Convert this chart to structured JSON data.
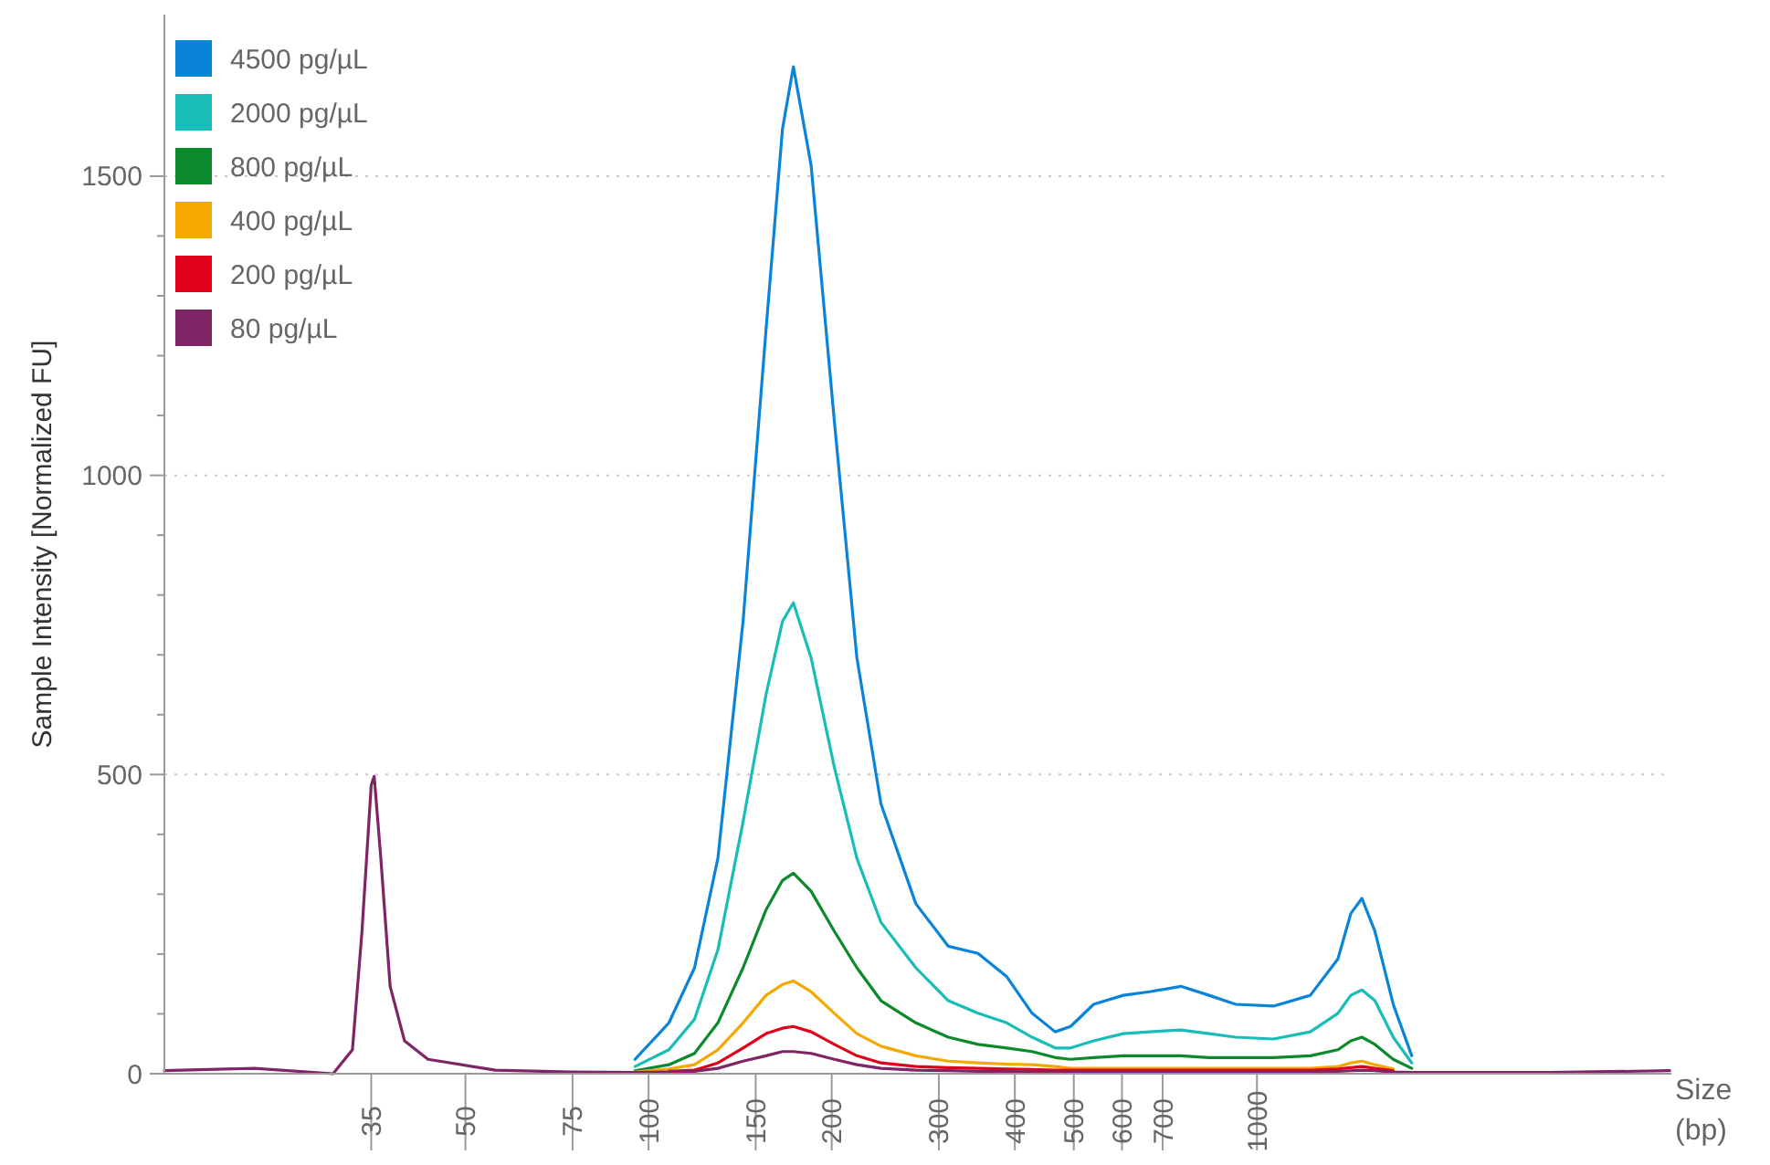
{
  "chart_data": {
    "type": "line",
    "xlabel": "Size (bp)",
    "ylabel": "Sample Intensity [Normalized FU]",
    "log": "x",
    "xlim": [
      16,
      4800
    ],
    "xticks": [
      35,
      50,
      75,
      100,
      150,
      200,
      300,
      400,
      500,
      600,
      700,
      1000
    ],
    "ylim": [
      0,
      1770
    ],
    "yticks": [
      0,
      500,
      1000,
      1500
    ],
    "grid": "y",
    "legend": "top left",
    "line_style": "solid",
    "x": [
      16,
      22.5,
      30.3,
      32.6,
      33.8,
      35,
      35.4,
      36.3,
      37.6,
      39.7,
      43.4,
      56,
      74.5,
      95,
      108,
      119,
      130,
      143,
      156,
      166,
      173,
      185,
      202,
      220,
      241,
      275,
      311,
      348,
      388,
      427,
      466,
      494,
      539,
      603,
      666,
      750,
      834,
      923,
      1065,
      1224,
      1359,
      1427,
      1488,
      1563,
      1675,
      1797,
      1995,
      3033,
      4770
    ],
    "series": [
      {
        "name": "4500 pg/µL",
        "color": "#0a84d8",
        "values": [
          null,
          null,
          null,
          null,
          null,
          null,
          null,
          null,
          null,
          null,
          null,
          null,
          null,
          24,
          85,
          177,
          360,
          756,
          1244,
          1579,
          1683,
          1518,
          1091,
          695,
          451,
          284,
          213,
          201,
          162,
          101,
          70,
          79,
          116,
          131,
          137,
          146,
          131,
          116,
          113,
          131,
          192,
          268,
          293,
          238,
          116,
          30,
          null,
          null,
          null
        ]
      },
      {
        "name": "2000 pg/µL",
        "color": "#18bdb8",
        "values": [
          null,
          null,
          null,
          null,
          null,
          null,
          null,
          null,
          null,
          null,
          null,
          null,
          null,
          12,
          40,
          91,
          207,
          421,
          634,
          756,
          787,
          695,
          512,
          360,
          253,
          177,
          122,
          101,
          85,
          61,
          43,
          43,
          55,
          67,
          70,
          73,
          67,
          61,
          58,
          70,
          101,
          131,
          140,
          122,
          61,
          18,
          null,
          null,
          null
        ]
      },
      {
        "name": "800 pg/µL",
        "color": "#0a8a2a",
        "values": [
          null,
          null,
          null,
          null,
          null,
          null,
          null,
          null,
          null,
          null,
          null,
          null,
          null,
          5,
          15,
          34,
          85,
          177,
          274,
          323,
          335,
          305,
          238,
          177,
          122,
          85,
          61,
          49,
          43,
          37,
          27,
          24,
          27,
          30,
          30,
          30,
          27,
          27,
          27,
          30,
          40,
          55,
          61,
          49,
          24,
          9,
          null,
          null,
          null
        ]
      },
      {
        "name": "400 pg/µL",
        "color": "#f5a800",
        "values": [
          null,
          null,
          null,
          null,
          null,
          null,
          null,
          null,
          null,
          null,
          null,
          null,
          null,
          3,
          8,
          15,
          40,
          85,
          131,
          149,
          155,
          137,
          101,
          67,
          46,
          30,
          21,
          18,
          16,
          15,
          12,
          9,
          9,
          9,
          9,
          9,
          9,
          9,
          9,
          9,
          12,
          18,
          21,
          15,
          8,
          null,
          null,
          null,
          null
        ]
      },
      {
        "name": "200 pg/µL",
        "color": "#e0001b",
        "values": [
          null,
          null,
          null,
          null,
          null,
          null,
          null,
          null,
          null,
          null,
          null,
          null,
          null,
          null,
          4,
          6,
          18,
          43,
          67,
          76,
          79,
          70,
          49,
          30,
          18,
          12,
          10,
          9,
          8,
          7,
          6,
          6,
          6,
          6,
          6,
          6,
          6,
          6,
          6,
          6,
          8,
          10,
          12,
          9,
          5,
          null,
          null,
          null,
          null
        ]
      },
      {
        "name": "80 pg/µL",
        "color": "#7f2566",
        "values": [
          5,
          9,
          0,
          40,
          238,
          482,
          497,
          360,
          146,
          55,
          24,
          6,
          3,
          2,
          3,
          4,
          9,
          21,
          30,
          37,
          37,
          34,
          24,
          15,
          9,
          6,
          5,
          4,
          4,
          3,
          3,
          3,
          3,
          3,
          3,
          3,
          3,
          3,
          3,
          3,
          4,
          5,
          6,
          5,
          3,
          2,
          2,
          2,
          5
        ]
      }
    ]
  }
}
